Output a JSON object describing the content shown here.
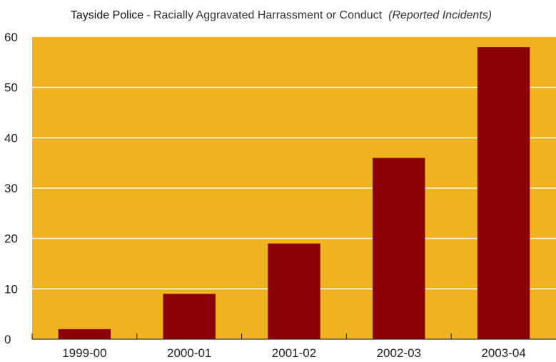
{
  "chart_data": {
    "type": "bar",
    "title": "Tayside Police",
    "subtitle": "Racially Aggravated Harrassment or Conduct",
    "subtitle_note": "(Reported Incidents)",
    "categories": [
      "1999-00",
      "2000-01",
      "2001-02",
      "2002-03",
      "2003-04"
    ],
    "values": [
      2,
      9,
      19,
      36,
      58
    ],
    "xlabel": "",
    "ylabel": "",
    "ylim": [
      0,
      60
    ],
    "yticks": [
      0,
      10,
      20,
      30,
      40,
      50,
      60
    ],
    "grid": true,
    "legend": "none",
    "colors": {
      "plot_background": "#efb320",
      "bar": "#8b0000",
      "grid": "#ffffff",
      "axis": "#333333"
    }
  }
}
